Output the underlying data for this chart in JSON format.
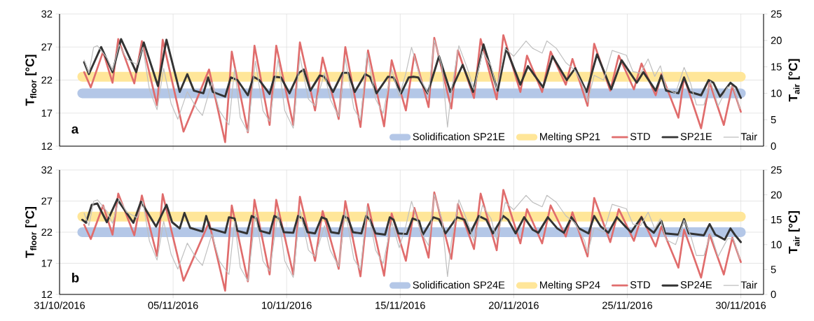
{
  "chart_data": [
    {
      "type": "line",
      "ylabel": "T$_{floor}$ [°C]",
      "y2label": "T$_{air}$ [°C]",
      "annotations": [
        "a"
      ],
      "tick_labels": "y",
      "grid": true,
      "legend": "bottom right",
      "marker": "none",
      "xlim": [
        "2016-10-31",
        "2016-12-01"
      ],
      "xticks": [
        {
          "value": "2016-10-31",
          "label": null
        },
        {
          "value": "2016-11-05",
          "label": null
        },
        {
          "value": "2016-11-10",
          "label": null
        },
        {
          "value": "2016-11-15",
          "label": null
        },
        {
          "value": "2016-11-20",
          "label": null
        },
        {
          "value": "2016-11-25",
          "label": null
        },
        {
          "value": "2016-11-30",
          "label": null
        }
      ],
      "ylim": [
        12,
        32
      ],
      "yticks": [
        12,
        17,
        22,
        27,
        32
      ],
      "y2lim": [
        0,
        25
      ],
      "y2ticks": [
        0,
        5,
        10,
        15,
        20,
        25
      ],
      "series": [
        {
          "name": "Solidification SP21E",
          "color": "#b4c7e7",
          "x": [
            "2016-11-01T00:00",
            "2016-11-30T00:00"
          ],
          "values": [
            20,
            20
          ]
        },
        {
          "name": "Melting SP21",
          "color": "#ffe699",
          "x": [
            "2016-11-01T00:00",
            "2016-11-30T00:00"
          ],
          "values": [
            22.5,
            22.5
          ]
        },
        {
          "name": "STD",
          "color": "#e06c6c",
          "x": [
            "2016-11-01T02:00",
            "2016-11-01T09:00",
            "2016-11-01T22:00",
            "2016-11-02T08:00",
            "2016-11-02T14:00",
            "2016-11-03T07:00",
            "2016-11-03T15:00",
            "2016-11-04T07:00",
            "2016-11-04T13:00",
            "2016-11-05T11:00",
            "2016-11-06T14:00",
            "2016-11-07T07:00",
            "2016-11-07T14:00",
            "2016-11-08T07:00",
            "2016-11-08T14:00",
            "2016-11-09T06:00",
            "2016-11-09T13:00",
            "2016-11-10T07:00",
            "2016-11-10T14:00",
            "2016-11-11T06:00",
            "2016-11-11T14:00",
            "2016-11-12T07:00",
            "2016-11-12T14:00",
            "2016-11-13T06:00",
            "2016-11-13T14:00",
            "2016-11-14T07:00",
            "2016-11-14T15:00",
            "2016-11-15T06:00",
            "2016-11-15T15:00",
            "2016-11-16T06:00",
            "2016-11-16T12:00",
            "2016-11-17T06:00",
            "2016-11-17T13:00",
            "2016-11-18T06:00",
            "2016-11-18T13:00",
            "2016-11-19T06:00",
            "2016-11-19T13:00",
            "2016-11-20T07:00",
            "2016-11-20T14:00",
            "2016-11-21T06:00",
            "2016-11-21T15:00",
            "2016-11-22T07:00",
            "2016-11-22T14:00",
            "2016-11-23T06:00",
            "2016-11-23T13:00",
            "2016-11-24T06:00",
            "2016-11-24T15:00",
            "2016-11-25T07:00",
            "2016-11-25T15:00",
            "2016-11-26T06:00",
            "2016-11-26T12:00",
            "2016-11-27T06:00",
            "2016-11-27T12:00",
            "2016-11-28T06:00",
            "2016-11-28T15:00",
            "2016-11-29T06:00",
            "2016-11-29T15:00",
            "2016-11-30T00:00"
          ],
          "values": [
            23.2,
            20.9,
            26.3,
            21.6,
            28.2,
            21.5,
            27.9,
            18.2,
            28.1,
            14.2,
            23.6,
            12.6,
            26.3,
            14.1,
            27.2,
            15.2,
            27.2,
            15.2,
            27.7,
            17.4,
            25.4,
            16.1,
            27.0,
            14.9,
            26.5,
            15.0,
            25.0,
            17.4,
            25.9,
            17.9,
            28.4,
            17.7,
            26.5,
            19.3,
            28.2,
            19.1,
            28.8,
            20.2,
            25.7,
            20.2,
            26.3,
            21.3,
            25.2,
            18.1,
            27.5,
            20.4,
            25.7,
            20.6,
            24.5,
            19.7,
            22.9,
            16.3,
            22.4,
            14.7,
            21.6,
            15.2,
            21.1,
            17.2
          ]
        },
        {
          "name": "SP21E",
          "color": "#333333",
          "x": [
            "2016-11-01T02:00",
            "2016-11-01T07:00",
            "2016-11-01T17:00",
            "2016-11-01T20:00",
            "2016-11-02T08:00",
            "2016-11-02T17:00",
            "2016-11-03T09:00",
            "2016-11-03T17:00",
            "2016-11-04T08:00",
            "2016-11-04T17:00",
            "2016-11-05T07:00",
            "2016-11-05T15:00",
            "2016-11-05T22:00",
            "2016-11-06T08:00",
            "2016-11-06T13:00",
            "2016-11-06T18:00",
            "2016-11-07T07:00",
            "2016-11-07T13:00",
            "2016-11-07T20:00",
            "2016-11-08T07:00",
            "2016-11-08T13:00",
            "2016-11-08T19:00",
            "2016-11-09T06:00",
            "2016-11-09T11:00",
            "2016-11-09T18:00",
            "2016-11-10T03:00",
            "2016-11-10T13:00",
            "2016-11-10T18:00",
            "2016-11-11T01:00",
            "2016-11-11T11:00",
            "2016-11-11T16:00",
            "2016-11-12T01:00",
            "2016-11-12T11:00",
            "2016-11-12T17:00",
            "2016-11-13T00:00",
            "2016-11-13T11:00",
            "2016-11-13T16:00",
            "2016-11-13T23:00",
            "2016-11-14T11:00",
            "2016-11-14T17:00",
            "2016-11-15T01:00",
            "2016-11-15T09:00",
            "2016-11-15T14:00",
            "2016-11-15T19:00",
            "2016-11-16T05:00",
            "2016-11-16T17:00",
            "2016-11-17T05:00",
            "2016-11-17T18:00",
            "2016-11-18T05:00",
            "2016-11-18T16:00",
            "2016-11-19T07:00",
            "2016-11-19T16:00",
            "2016-11-20T07:00",
            "2016-11-20T15:00",
            "2016-11-21T07:00",
            "2016-11-21T17:00",
            "2016-11-22T08:00",
            "2016-11-22T17:00",
            "2016-11-23T05:00",
            "2016-11-23T16:00",
            "2016-11-24T07:00",
            "2016-11-24T18:00",
            "2016-11-25T10:00",
            "2016-11-25T17:00",
            "2016-11-26T06:00",
            "2016-11-26T12:00",
            "2016-11-26T17:00",
            "2016-11-27T06:00",
            "2016-11-27T12:00",
            "2016-11-27T18:00",
            "2016-11-28T06:00",
            "2016-11-28T14:00",
            "2016-11-28T19:00",
            "2016-11-29T02:00",
            "2016-11-29T13:00",
            "2016-11-29T19:00",
            "2016-11-30T00:00"
          ],
          "values": [
            24.7,
            22.9,
            26.1,
            27.0,
            23.2,
            28.2,
            23.2,
            27.7,
            21.1,
            28.1,
            20.2,
            22.9,
            20.4,
            20.0,
            22.4,
            20.2,
            19.5,
            22.4,
            22.0,
            19.7,
            22.5,
            22.0,
            19.9,
            22.5,
            22.4,
            20.0,
            23.1,
            23.6,
            20.4,
            22.7,
            22.5,
            20.2,
            23.1,
            23.1,
            20.2,
            22.9,
            22.5,
            20.0,
            22.5,
            22.4,
            20.0,
            22.4,
            22.5,
            22.4,
            20.0,
            25.6,
            20.2,
            24.3,
            20.2,
            27.4,
            20.4,
            26.8,
            21.3,
            24.1,
            20.9,
            25.6,
            22.0,
            23.8,
            20.2,
            25.9,
            20.6,
            25.0,
            21.6,
            23.2,
            20.4,
            22.7,
            20.4,
            20.0,
            22.4,
            20.2,
            19.7,
            22.0,
            21.6,
            19.5,
            21.6,
            20.9,
            19.3
          ]
        },
        {
          "name": "Tair",
          "color": "#bfbfbf",
          "axis": "y2",
          "x": [
            "2016-11-01T02:00",
            "2016-11-01T07:00",
            "2016-11-01T12:00",
            "2016-11-01T16:00",
            "2016-11-02T02:00",
            "2016-11-02T08:00",
            "2016-11-02T15:00",
            "2016-11-02T23:00",
            "2016-11-03T10:00",
            "2016-11-03T16:00",
            "2016-11-03T23:00",
            "2016-11-04T07:00",
            "2016-11-04T14:00",
            "2016-11-04T22:00",
            "2016-11-05T05:00",
            "2016-11-05T15:00",
            "2016-11-06T01:00",
            "2016-11-06T07:00",
            "2016-11-06T17:00",
            "2016-11-07T01:00",
            "2016-11-07T11:00",
            "2016-11-07T17:00",
            "2016-11-07T23:00",
            "2016-11-08T07:00",
            "2016-11-08T15:00",
            "2016-11-08T23:00",
            "2016-11-09T06:00",
            "2016-11-09T15:00",
            "2016-11-09T22:00",
            "2016-11-10T07:00",
            "2016-11-10T14:00",
            "2016-11-10T23:00",
            "2016-11-11T06:00",
            "2016-11-11T16:00",
            "2016-11-11T22:00",
            "2016-11-12T07:00",
            "2016-11-12T14:00",
            "2016-11-12T23:00",
            "2016-11-13T06:00",
            "2016-11-13T13:00",
            "2016-11-13T22:00",
            "2016-11-14T06:00",
            "2016-11-14T15:00",
            "2016-11-14T23:00",
            "2016-11-15T06:00",
            "2016-11-15T12:00",
            "2016-11-15T22:00",
            "2016-11-16T06:00",
            "2016-11-16T12:00",
            "2016-11-16T20:00",
            "2016-11-17T02:00",
            "2016-11-17T06:00",
            "2016-11-17T14:00",
            "2016-11-17T23:00",
            "2016-11-18T06:00",
            "2016-11-18T15:00",
            "2016-11-19T00:00",
            "2016-11-19T06:00",
            "2016-11-19T15:00",
            "2016-11-20T00:00",
            "2016-11-20T13:00",
            "2016-11-20T20:00",
            "2016-11-21T06:00",
            "2016-11-21T11:00",
            "2016-11-21T21:00",
            "2016-11-22T07:00",
            "2016-11-22T17:00",
            "2016-11-23T03:00",
            "2016-11-23T06:00",
            "2016-11-23T13:00",
            "2016-11-23T23:00",
            "2016-11-24T08:00",
            "2016-11-24T23:00",
            "2016-11-25T06:00",
            "2016-11-25T14:00",
            "2016-11-25T22:00",
            "2016-11-26T05:00",
            "2016-11-26T11:00",
            "2016-11-26T17:00",
            "2016-11-27T03:00",
            "2016-11-27T12:00",
            "2016-11-27T19:00",
            "2016-11-28T01:00",
            "2016-11-28T09:00",
            "2016-11-28T16:00",
            "2016-11-29T00:00",
            "2016-11-29T10:00",
            "2016-11-29T16:00",
            "2016-11-29T23:00"
          ],
          "values": [
            16.3,
            13.8,
            18.7,
            19.0,
            16.7,
            14.3,
            19.2,
            16.5,
            15.4,
            18.7,
            10.7,
            6.9,
            14.7,
            8.0,
            5.1,
            10.3,
            7.1,
            5.8,
            12.1,
            6.7,
            4.0,
            14.7,
            5.4,
            2.7,
            16.1,
            6.7,
            4.7,
            16.5,
            6.7,
            3.4,
            17.0,
            8.9,
            7.6,
            13.8,
            8.9,
            5.6,
            16.7,
            7.1,
            4.9,
            17.6,
            8.9,
            6.2,
            14.5,
            9.4,
            13.8,
            18.7,
            12.5,
            9.8,
            20.1,
            15.2,
            3.6,
            10.5,
            19.0,
            14.7,
            10.7,
            17.9,
            15.2,
            10.9,
            18.5,
            17.0,
            19.9,
            18.5,
            17.6,
            19.9,
            18.5,
            15.8,
            14.3,
            10.7,
            8.3,
            13.4,
            12.5,
            18.1,
            17.2,
            14.1,
            13.8,
            16.5,
            13.2,
            15.2,
            11.0,
            10.0,
            14.9,
            11.8,
            7.8,
            7.8,
            12.3,
            7.6,
            11.2,
            11.2,
            7.1
          ]
        }
      ]
    },
    {
      "type": "line",
      "ylabel": "T$_{floor}$ [°C]",
      "y2label": "T$_{air}$ [°C]",
      "annotations": [
        "b"
      ],
      "grid": true,
      "legend": "bottom right",
      "marker": "none",
      "xlim": [
        "2016-10-31",
        "2016-12-01"
      ],
      "xticks": [
        {
          "value": "2016-10-31",
          "label": "31/10/2016"
        },
        {
          "value": "2016-11-05",
          "label": "05/11/2016"
        },
        {
          "value": "2016-11-10",
          "label": "10/11/2016"
        },
        {
          "value": "2016-11-15",
          "label": "15/11/2016"
        },
        {
          "value": "2016-11-20",
          "label": "20/11/2016"
        },
        {
          "value": "2016-11-25",
          "label": "25/11/2016"
        },
        {
          "value": "2016-11-30",
          "label": "30/11/2016"
        }
      ],
      "ylim": [
        12,
        32
      ],
      "yticks": [
        12,
        17,
        22,
        27,
        32
      ],
      "y2lim": [
        0,
        25
      ],
      "y2ticks": [
        0,
        5,
        10,
        15,
        20,
        25
      ],
      "series": [
        {
          "name": "Solidification SP24E",
          "color": "#b4c7e7",
          "x": [
            "2016-11-01T00:00",
            "2016-11-30T00:00"
          ],
          "values": [
            22,
            22
          ]
        },
        {
          "name": "Melting SP24",
          "color": "#ffe699",
          "x": [
            "2016-11-01T00:00",
            "2016-11-30T00:00"
          ],
          "values": [
            24.5,
            24.5
          ]
        },
        {
          "name": "STD",
          "color": "#e06c6c",
          "x": [
            "2016-11-01T02:00",
            "2016-11-01T09:00",
            "2016-11-01T22:00",
            "2016-11-02T08:00",
            "2016-11-02T14:00",
            "2016-11-03T07:00",
            "2016-11-03T15:00",
            "2016-11-04T07:00",
            "2016-11-04T13:00",
            "2016-11-05T11:00",
            "2016-11-06T14:00",
            "2016-11-07T07:00",
            "2016-11-07T14:00",
            "2016-11-08T07:00",
            "2016-11-08T14:00",
            "2016-11-09T06:00",
            "2016-11-09T13:00",
            "2016-11-10T07:00",
            "2016-11-10T14:00",
            "2016-11-11T06:00",
            "2016-11-11T14:00",
            "2016-11-12T07:00",
            "2016-11-12T14:00",
            "2016-11-13T06:00",
            "2016-11-13T14:00",
            "2016-11-14T07:00",
            "2016-11-14T15:00",
            "2016-11-15T06:00",
            "2016-11-15T15:00",
            "2016-11-16T06:00",
            "2016-11-16T12:00",
            "2016-11-17T06:00",
            "2016-11-17T13:00",
            "2016-11-18T06:00",
            "2016-11-18T13:00",
            "2016-11-19T06:00",
            "2016-11-19T13:00",
            "2016-11-20T07:00",
            "2016-11-20T14:00",
            "2016-11-21T06:00",
            "2016-11-21T15:00",
            "2016-11-22T07:00",
            "2016-11-22T14:00",
            "2016-11-23T06:00",
            "2016-11-23T13:00",
            "2016-11-24T06:00",
            "2016-11-24T15:00",
            "2016-11-25T07:00",
            "2016-11-25T15:00",
            "2016-11-26T06:00",
            "2016-11-26T12:00",
            "2016-11-27T06:00",
            "2016-11-27T12:00",
            "2016-11-28T06:00",
            "2016-11-28T15:00",
            "2016-11-29T06:00",
            "2016-11-29T15:00",
            "2016-11-30T00:00"
          ],
          "values": [
            23.2,
            20.9,
            26.3,
            21.6,
            28.2,
            21.5,
            27.9,
            18.2,
            28.1,
            14.2,
            23.6,
            12.6,
            26.3,
            14.1,
            27.2,
            15.2,
            27.2,
            15.2,
            27.7,
            17.4,
            25.4,
            16.1,
            27.0,
            14.9,
            26.5,
            15.0,
            25.0,
            17.4,
            25.9,
            17.9,
            28.4,
            17.7,
            26.5,
            19.3,
            28.2,
            19.1,
            28.8,
            20.2,
            25.7,
            20.2,
            26.3,
            21.3,
            25.2,
            18.1,
            27.5,
            20.4,
            25.7,
            20.6,
            24.5,
            19.7,
            22.9,
            16.3,
            22.4,
            14.7,
            21.6,
            15.2,
            21.1,
            17.2
          ]
        },
        {
          "name": "SP24E",
          "color": "#333333",
          "x": [
            "2016-11-01T00:00",
            "2016-11-01T04:00",
            "2016-11-01T10:00",
            "2016-11-01T16:00",
            "2016-11-02T02:00",
            "2016-11-02T13:00",
            "2016-11-03T06:00",
            "2016-11-03T14:00",
            "2016-11-04T06:00",
            "2016-11-04T17:00",
            "2016-11-04T23:00",
            "2016-11-05T07:00",
            "2016-11-05T12:00",
            "2016-11-05T18:00",
            "2016-11-06T07:00",
            "2016-11-06T11:00",
            "2016-11-06T15:00",
            "2016-11-07T07:00",
            "2016-11-07T11:00",
            "2016-11-07T17:00",
            "2016-11-07T20:00",
            "2016-11-08T06:00",
            "2016-11-08T11:00",
            "2016-11-08T16:00",
            "2016-11-08T20:00",
            "2016-11-09T06:00",
            "2016-11-09T11:00",
            "2016-11-09T16:00",
            "2016-11-09T21:00",
            "2016-11-10T07:00",
            "2016-11-10T12:00",
            "2016-11-10T17:00",
            "2016-11-10T22:00",
            "2016-11-11T06:00",
            "2016-11-11T13:00",
            "2016-11-11T18:00",
            "2016-11-11T23:00",
            "2016-11-12T07:00",
            "2016-11-12T12:00",
            "2016-11-12T17:00",
            "2016-11-12T22:00",
            "2016-11-13T07:00",
            "2016-11-13T12:00",
            "2016-11-13T16:00",
            "2016-11-13T22:00",
            "2016-11-14T08:00",
            "2016-11-14T13:00",
            "2016-11-14T17:00",
            "2016-11-14T22:00",
            "2016-11-15T07:00",
            "2016-11-15T13:00",
            "2016-11-15T20:00",
            "2016-11-16T00:00",
            "2016-11-16T11:00",
            "2016-11-16T17:00",
            "2016-11-17T00:00",
            "2016-11-17T12:00",
            "2016-11-17T20:00",
            "2016-11-18T02:00",
            "2016-11-18T11:00",
            "2016-11-18T19:00",
            "2016-11-19T02:00",
            "2016-11-19T13:00",
            "2016-11-19T18:00",
            "2016-11-20T02:00",
            "2016-11-20T11:00",
            "2016-11-20T20:00",
            "2016-11-21T02:00",
            "2016-11-21T12:00",
            "2016-11-21T22:00",
            "2016-11-22T05:00",
            "2016-11-22T13:00",
            "2016-11-22T21:00",
            "2016-11-23T07:00",
            "2016-11-23T13:00",
            "2016-11-23T20:00",
            "2016-11-24T04:00",
            "2016-11-24T13:00",
            "2016-11-24T22:00",
            "2016-11-25T04:00",
            "2016-11-25T15:00",
            "2016-11-25T20:00",
            "2016-11-26T04:00",
            "2016-11-26T12:00",
            "2016-11-26T16:00",
            "2016-11-27T06:00",
            "2016-11-27T12:00",
            "2016-11-27T17:00",
            "2016-11-28T09:00",
            "2016-11-28T15:00",
            "2016-11-28T21:00",
            "2016-11-29T07:00",
            "2016-11-29T13:00",
            "2016-11-29T18:00",
            "2016-11-30T00:00"
          ],
          "values": [
            24.0,
            23.5,
            26.4,
            26.6,
            23.6,
            27.3,
            23.5,
            26.9,
            22.9,
            26.4,
            23.6,
            22.6,
            25.1,
            22.7,
            22.1,
            24.6,
            22.6,
            21.9,
            24.4,
            24.2,
            22.2,
            21.8,
            24.6,
            24.2,
            22.2,
            21.8,
            24.6,
            24.2,
            22.0,
            21.9,
            24.6,
            24.2,
            22.0,
            21.8,
            24.4,
            24.1,
            22.0,
            21.8,
            24.6,
            24.2,
            22.0,
            21.8,
            24.6,
            24.0,
            21.8,
            21.6,
            24.4,
            24.0,
            21.8,
            21.7,
            24.2,
            23.8,
            21.6,
            24.4,
            24.1,
            21.8,
            24.4,
            24.0,
            21.8,
            24.6,
            24.0,
            21.8,
            24.6,
            24.0,
            21.8,
            24.4,
            22.4,
            21.9,
            24.4,
            22.6,
            21.9,
            24.4,
            22.6,
            21.8,
            24.6,
            22.9,
            21.9,
            24.4,
            22.9,
            22.0,
            24.4,
            22.9,
            21.9,
            23.8,
            21.8,
            21.6,
            24.1,
            21.8,
            21.5,
            23.3,
            21.6,
            20.8,
            22.6,
            21.5,
            20.4
          ]
        },
        {
          "name": "Tair",
          "color": "#bfbfbf",
          "axis": "y2",
          "x": [
            "2016-11-01T02:00",
            "2016-11-01T07:00",
            "2016-11-01T12:00",
            "2016-11-01T16:00",
            "2016-11-02T02:00",
            "2016-11-02T08:00",
            "2016-11-02T15:00",
            "2016-11-02T23:00",
            "2016-11-03T10:00",
            "2016-11-03T16:00",
            "2016-11-03T23:00",
            "2016-11-04T07:00",
            "2016-11-04T14:00",
            "2016-11-04T22:00",
            "2016-11-05T05:00",
            "2016-11-05T15:00",
            "2016-11-06T01:00",
            "2016-11-06T07:00",
            "2016-11-06T17:00",
            "2016-11-07T01:00",
            "2016-11-07T11:00",
            "2016-11-07T17:00",
            "2016-11-07T23:00",
            "2016-11-08T07:00",
            "2016-11-08T15:00",
            "2016-11-08T23:00",
            "2016-11-09T06:00",
            "2016-11-09T15:00",
            "2016-11-09T22:00",
            "2016-11-10T07:00",
            "2016-11-10T14:00",
            "2016-11-10T23:00",
            "2016-11-11T06:00",
            "2016-11-11T16:00",
            "2016-11-11T22:00",
            "2016-11-12T07:00",
            "2016-11-12T14:00",
            "2016-11-12T23:00",
            "2016-11-13T06:00",
            "2016-11-13T13:00",
            "2016-11-13T22:00",
            "2016-11-14T06:00",
            "2016-11-14T15:00",
            "2016-11-14T23:00",
            "2016-11-15T06:00",
            "2016-11-15T12:00",
            "2016-11-15T22:00",
            "2016-11-16T06:00",
            "2016-11-16T12:00",
            "2016-11-16T20:00",
            "2016-11-17T02:00",
            "2016-11-17T06:00",
            "2016-11-17T14:00",
            "2016-11-17T23:00",
            "2016-11-18T06:00",
            "2016-11-18T15:00",
            "2016-11-19T00:00",
            "2016-11-19T06:00",
            "2016-11-19T15:00",
            "2016-11-20T00:00",
            "2016-11-20T13:00",
            "2016-11-20T20:00",
            "2016-11-21T06:00",
            "2016-11-21T11:00",
            "2016-11-21T21:00",
            "2016-11-22T07:00",
            "2016-11-22T17:00",
            "2016-11-23T03:00",
            "2016-11-23T06:00",
            "2016-11-23T13:00",
            "2016-11-23T23:00",
            "2016-11-24T08:00",
            "2016-11-24T23:00",
            "2016-11-25T06:00",
            "2016-11-25T14:00",
            "2016-11-25T22:00",
            "2016-11-26T05:00",
            "2016-11-26T11:00",
            "2016-11-26T17:00",
            "2016-11-27T03:00",
            "2016-11-27T12:00",
            "2016-11-27T19:00",
            "2016-11-28T01:00",
            "2016-11-28T09:00",
            "2016-11-28T16:00",
            "2016-11-29T00:00",
            "2016-11-29T10:00",
            "2016-11-29T16:00",
            "2016-11-29T23:00"
          ],
          "values": [
            16.3,
            13.8,
            18.7,
            19.0,
            16.7,
            14.3,
            19.2,
            16.5,
            15.4,
            18.7,
            10.7,
            6.9,
            14.7,
            8.0,
            5.1,
            10.3,
            7.1,
            5.8,
            12.1,
            6.7,
            4.0,
            14.7,
            5.4,
            2.7,
            16.1,
            6.7,
            4.7,
            16.5,
            6.7,
            3.4,
            17.0,
            8.9,
            7.6,
            13.8,
            8.9,
            5.6,
            16.7,
            7.1,
            4.9,
            17.6,
            8.9,
            6.2,
            14.5,
            9.4,
            13.8,
            18.7,
            12.5,
            9.8,
            20.1,
            15.2,
            3.6,
            10.5,
            19.0,
            14.7,
            10.7,
            17.9,
            15.2,
            10.9,
            18.5,
            17.0,
            19.9,
            18.5,
            17.6,
            19.9,
            18.5,
            15.8,
            14.3,
            10.7,
            8.3,
            13.4,
            12.5,
            18.1,
            17.2,
            14.1,
            13.8,
            16.5,
            13.2,
            15.2,
            11.0,
            10.0,
            14.9,
            11.8,
            7.8,
            7.8,
            12.3,
            7.6,
            11.2,
            11.2,
            7.1
          ]
        }
      ]
    }
  ]
}
